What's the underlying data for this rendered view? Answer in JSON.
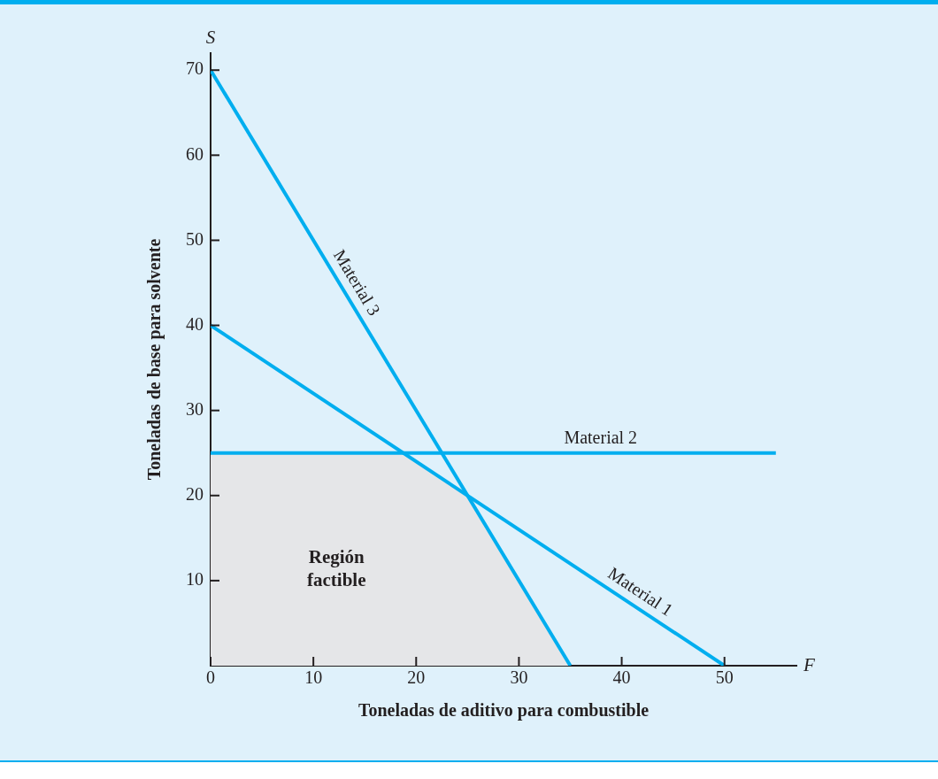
{
  "chart_data": {
    "type": "line",
    "xlabel": "Toneladas de aditivo para combustible",
    "ylabel": "Toneladas de base para solvente",
    "xlim": [
      0,
      57
    ],
    "ylim": [
      0,
      72
    ],
    "xticks": [
      0,
      10,
      20,
      30,
      40,
      50
    ],
    "yticks": [
      10,
      20,
      30,
      40,
      50,
      60,
      70
    ],
    "grid": false,
    "legend": false,
    "marker": "none",
    "line_style": "solid",
    "annotations": [
      "S",
      "F"
    ],
    "series": [
      {
        "name": "Material 1",
        "color": "#00aeef",
        "x": [
          0,
          50
        ],
        "values": [
          40,
          0
        ]
      },
      {
        "name": "Material 2",
        "color": "#00aeef",
        "x": [
          0,
          55
        ],
        "values": [
          25,
          25
        ]
      },
      {
        "name": "Material 3",
        "color": "#00aeef",
        "x": [
          0,
          35
        ],
        "values": [
          70,
          0
        ]
      },
      {
        "name": "Región factible",
        "type": "area",
        "color": "#e5e6e8",
        "x": [
          0,
          18.75,
          25,
          35
        ],
        "values": [
          25,
          25,
          20,
          0
        ]
      }
    ]
  }
}
